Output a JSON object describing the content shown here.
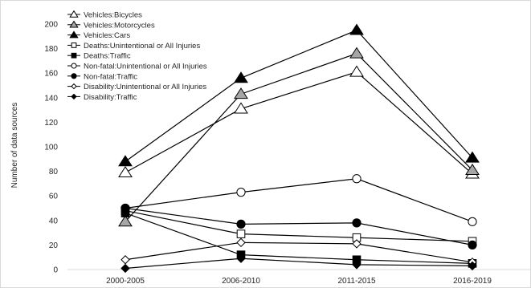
{
  "chart_data": {
    "type": "line",
    "title": "",
    "xlabel": "",
    "ylabel": "Number of data sources",
    "ylim": [
      0,
      200
    ],
    "ytick_step": 20,
    "grid": false,
    "legend_position": "top-left",
    "categories": [
      "2000-2005",
      "2006-2010",
      "2011-2015",
      "2016-2019"
    ],
    "series": [
      {
        "name": "Vehicles:Bicycles",
        "marker": "triangle",
        "fill": "#ffffff",
        "values": [
          79,
          131,
          161,
          78
        ]
      },
      {
        "name": "Vehicles:Motorcycles",
        "marker": "triangle",
        "fill": "#a6a6a6",
        "values": [
          39,
          143,
          176,
          81
        ]
      },
      {
        "name": "Vehicles:Cars",
        "marker": "triangle",
        "fill": "#000000",
        "values": [
          88,
          156,
          195,
          91
        ]
      },
      {
        "name": "Deaths:Unintentional or All Injuries",
        "marker": "square",
        "fill": "#ffffff",
        "values": [
          48,
          29,
          26,
          23
        ]
      },
      {
        "name": "Deaths:Traffic",
        "marker": "square",
        "fill": "#000000",
        "values": [
          46,
          12,
          8,
          5
        ]
      },
      {
        "name": "Non-fatal:Unintentional or All Injuries",
        "marker": "circle",
        "fill": "#ffffff",
        "values": [
          50,
          63,
          74,
          39
        ]
      },
      {
        "name": "Non-fatal:Traffic",
        "marker": "circle",
        "fill": "#000000",
        "values": [
          50,
          37,
          38,
          20
        ]
      },
      {
        "name": "Disability:Unintentional or All Injuries",
        "marker": "diamond",
        "fill": "#ffffff",
        "values": [
          8,
          22,
          21,
          6
        ]
      },
      {
        "name": "Disability:Traffic",
        "marker": "diamond",
        "fill": "#000000",
        "values": [
          1,
          9,
          4,
          3
        ]
      }
    ]
  }
}
